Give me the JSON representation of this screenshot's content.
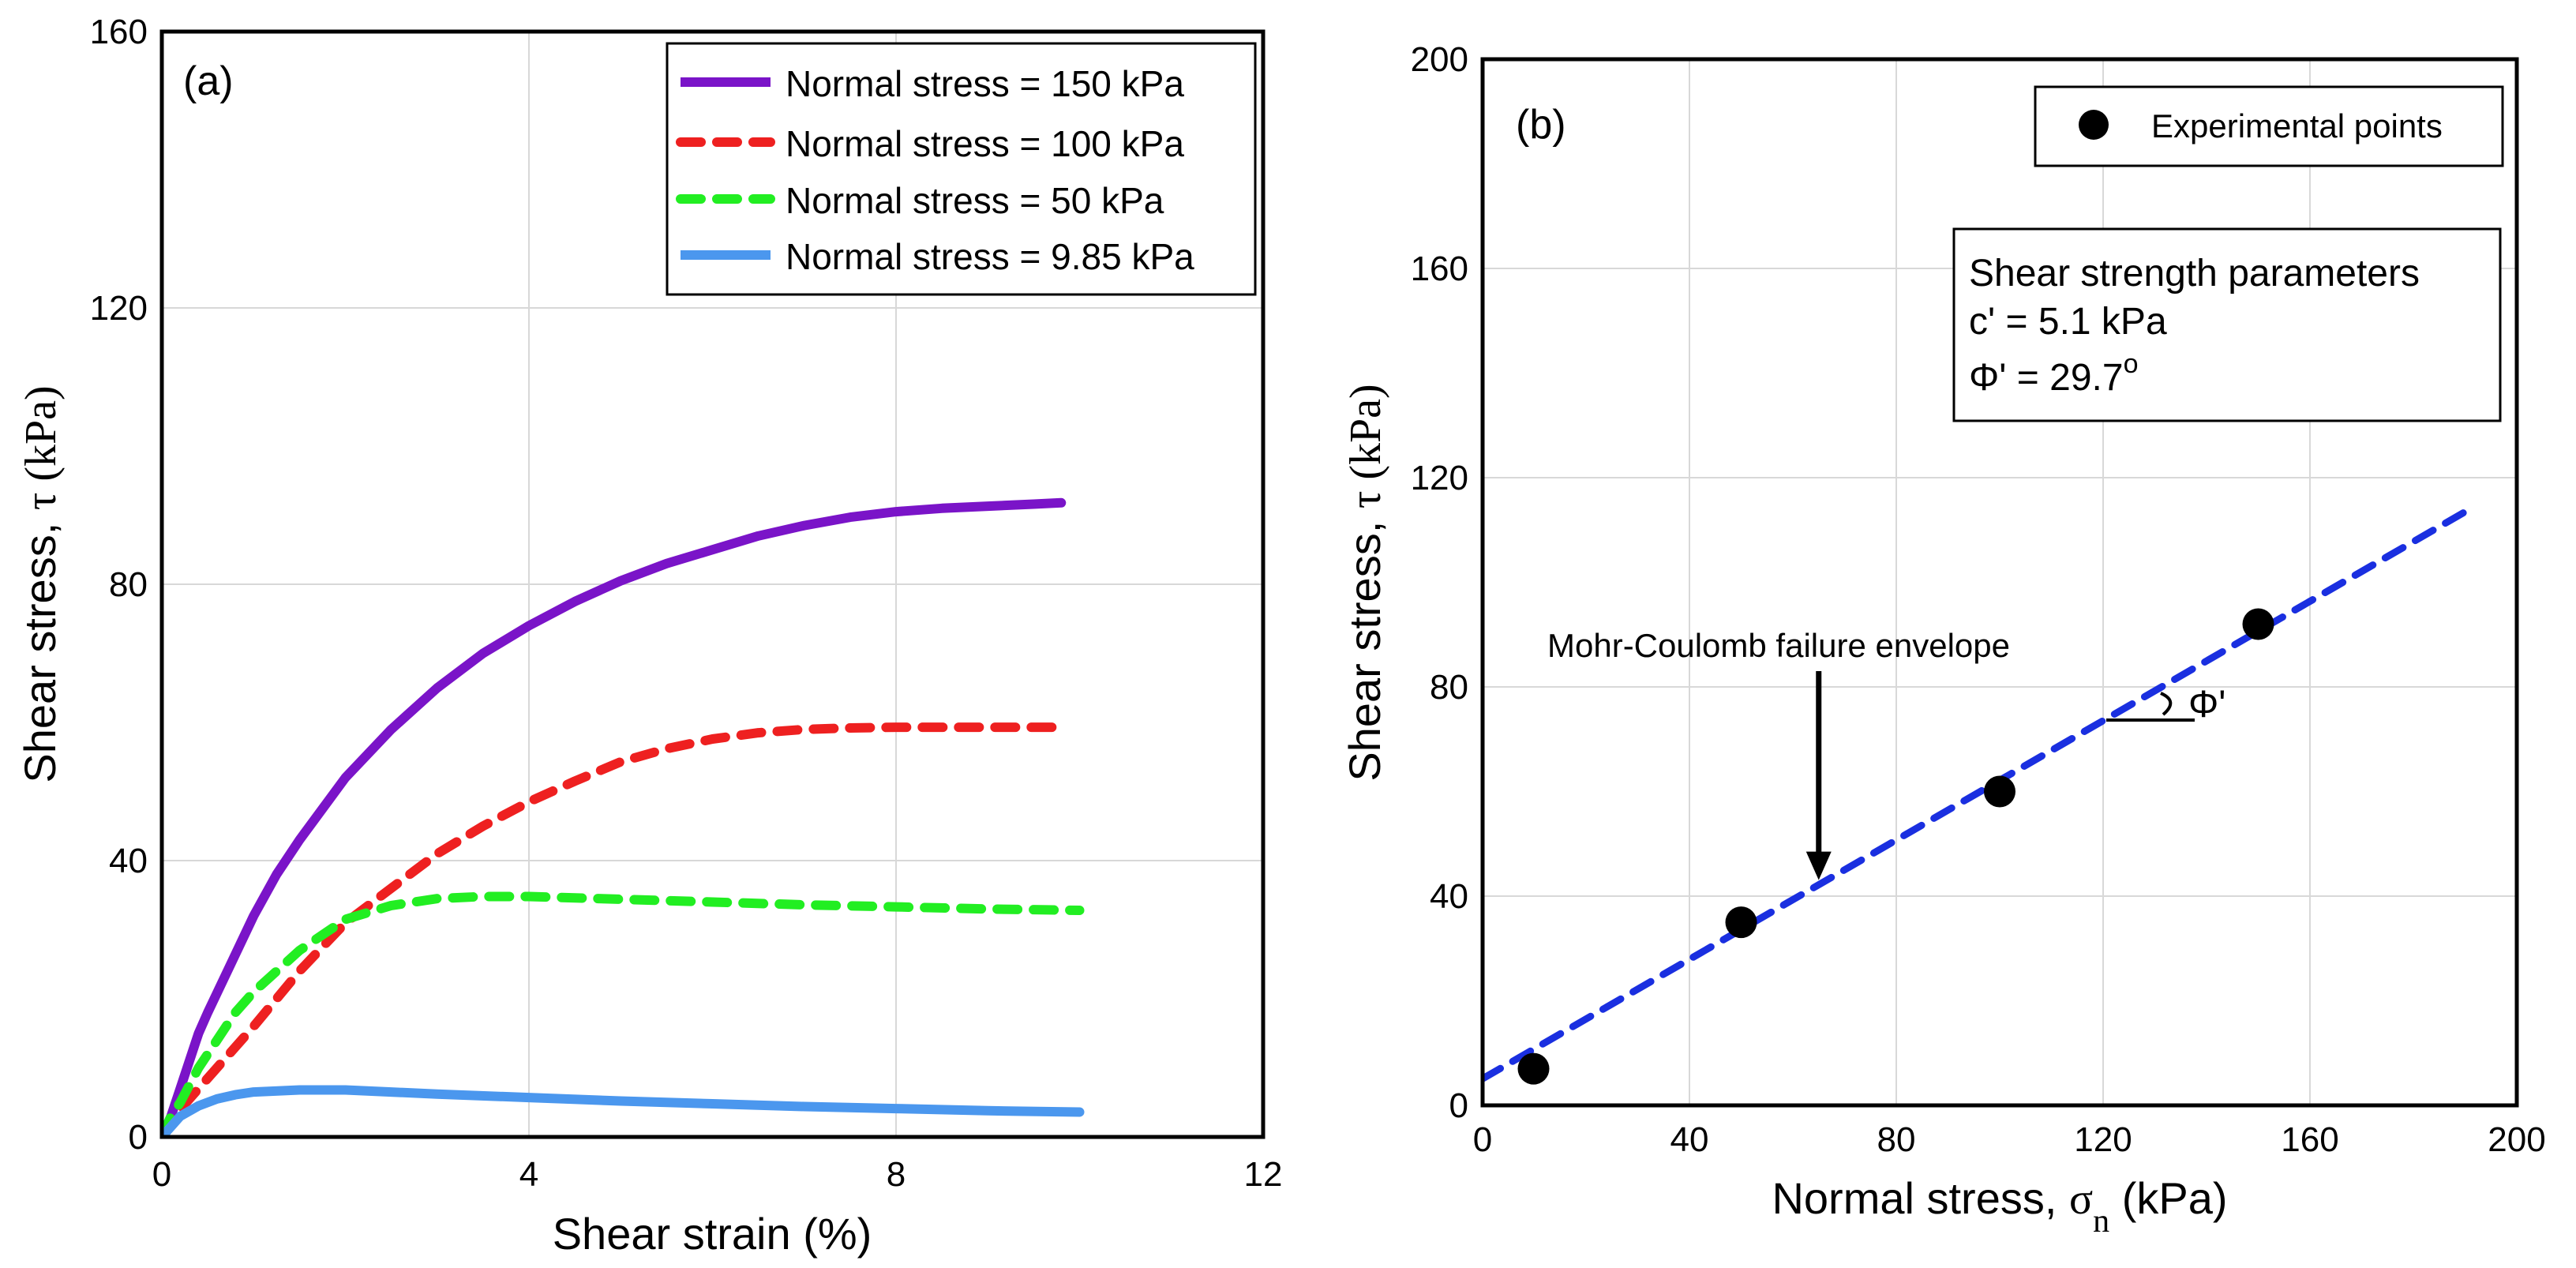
{
  "chart_data": [
    {
      "type": "line",
      "panel_label": "(a)",
      "xlabel": "Shear strain (%)",
      "ylabel_text": "Shear stress, ",
      "ylabel_symbol": "τ",
      "ylabel_unit": " (kPa)",
      "xlim": [
        0,
        12
      ],
      "ylim": [
        0,
        160
      ],
      "xticks": [
        0,
        4,
        8,
        12
      ],
      "yticks": [
        0,
        40,
        80,
        120,
        160
      ],
      "grid": true,
      "legend_position": "top-right",
      "series": [
        {
          "name": "Normal stress = 150 kPa",
          "color": "#7a14c8",
          "style": "solid",
          "x": [
            0,
            0.1,
            0.2,
            0.3,
            0.4,
            0.5,
            0.75,
            1.0,
            1.25,
            1.5,
            2.0,
            2.5,
            3.0,
            3.5,
            4.0,
            4.5,
            5.0,
            5.5,
            6.0,
            6.5,
            7.0,
            7.5,
            8.0,
            8.5,
            9.0,
            9.5,
            9.8
          ],
          "y": [
            0,
            3,
            7,
            11,
            15,
            18,
            25,
            32,
            38,
            43,
            52,
            59,
            65,
            70,
            74,
            77.5,
            80.5,
            83,
            85,
            87,
            88.5,
            89.7,
            90.5,
            91,
            91.3,
            91.6,
            91.8
          ]
        },
        {
          "name": "Normal stress = 100 kPa",
          "color": "#ee2020",
          "style": "dashed",
          "x": [
            0,
            0.2,
            0.4,
            0.6,
            0.8,
            1.0,
            1.5,
            2.0,
            2.5,
            3.0,
            3.5,
            4.0,
            4.5,
            5.0,
            5.5,
            6.0,
            6.5,
            7.0,
            7.5,
            8.0,
            8.5,
            9.0,
            9.5,
            9.7
          ],
          "y": [
            0,
            4,
            7,
            10,
            13,
            16,
            24,
            31,
            36,
            41,
            45,
            48.5,
            51.5,
            54.3,
            56.2,
            57.6,
            58.5,
            59,
            59.2,
            59.3,
            59.3,
            59.3,
            59.3,
            59.3
          ]
        },
        {
          "name": "Normal stress = 50 kPa",
          "color": "#22ee22",
          "style": "dashed",
          "x": [
            0,
            0.1,
            0.2,
            0.4,
            0.6,
            0.8,
            1.0,
            1.5,
            2.0,
            2.5,
            3.0,
            3.5,
            4.0,
            5.0,
            6.0,
            7.0,
            8.0,
            9.0,
            10.0
          ],
          "y": [
            0,
            3,
            5,
            10,
            14,
            18,
            21,
            27,
            31.5,
            33.5,
            34.5,
            34.8,
            34.8,
            34.4,
            34,
            33.6,
            33.3,
            33,
            32.8
          ]
        },
        {
          "name": "Normal stress = 9.85 kPa",
          "color": "#4b97ee",
          "style": "solid",
          "x": [
            0,
            0.2,
            0.4,
            0.6,
            0.8,
            1.0,
            1.5,
            2.0,
            2.5,
            3.0,
            4.0,
            5.0,
            6.0,
            7.0,
            8.0,
            9.0,
            10.0
          ],
          "y": [
            0,
            3,
            4.5,
            5.5,
            6.1,
            6.5,
            6.8,
            6.8,
            6.5,
            6.2,
            5.7,
            5.2,
            4.8,
            4.4,
            4.1,
            3.8,
            3.6
          ]
        }
      ]
    },
    {
      "type": "scatter",
      "panel_label": "(b)",
      "xlabel_text": "Normal stress, ",
      "xlabel_symbol": "σ",
      "xlabel_subscript": "n",
      "xlabel_unit": " (kPa)",
      "ylabel_text": "Shear stress, ",
      "ylabel_symbol": "τ",
      "ylabel_unit": " (kPa)",
      "xlim": [
        0,
        200
      ],
      "ylim": [
        0,
        200
      ],
      "xticks": [
        0,
        40,
        80,
        120,
        160,
        200
      ],
      "yticks": [
        0,
        40,
        80,
        120,
        160,
        200
      ],
      "grid": true,
      "legend_position": "top-right",
      "legend_label": "Experimental points",
      "points": [
        {
          "x": 9.85,
          "y": 7
        },
        {
          "x": 50,
          "y": 35
        },
        {
          "x": 100,
          "y": 60
        },
        {
          "x": 150,
          "y": 92
        }
      ],
      "envelope": {
        "color": "#1a2fe0",
        "x_start": 0,
        "x_end": 192,
        "intercept": 5.1,
        "angle_deg": 29.7
      },
      "parameters_box": {
        "title": "Shear strength parameters",
        "cohesion": "c' = 5.1 kPa",
        "phi_prefix": "Φ' = 29.7",
        "phi_degree": "o"
      },
      "annotation": {
        "text": "Mohr-Coulomb failure envelope",
        "arrow_target_x": 65
      },
      "angle_label": "Φ'"
    }
  ]
}
